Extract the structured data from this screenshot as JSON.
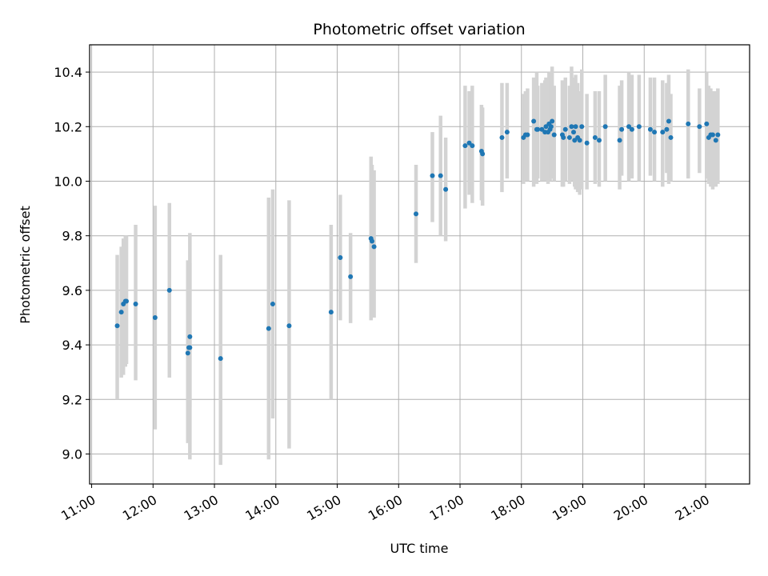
{
  "chart_data": {
    "type": "scatter",
    "title": "Photometric offset variation",
    "xlabel": "UTC time",
    "ylabel": "Photometric offset",
    "x_unit": "UTC time (hh:mm)",
    "xlim": [
      "10:58",
      "21:43"
    ],
    "ylim": [
      8.89,
      10.5
    ],
    "x_ticks": [
      "11:00",
      "12:00",
      "13:00",
      "14:00",
      "15:00",
      "16:00",
      "17:00",
      "18:00",
      "19:00",
      "20:00",
      "21:00"
    ],
    "y_ticks": [
      9.0,
      9.2,
      9.4,
      9.6,
      9.8,
      10.0,
      10.2,
      10.4
    ],
    "y_tick_labels": [
      "9.0",
      "9.2",
      "9.4",
      "9.6",
      "9.8",
      "10.0",
      "10.2",
      "10.4"
    ],
    "grid": true,
    "colors": {
      "points": "#1f77b4",
      "error_bars": "#d3d3d3",
      "grid": "#b0b0b0"
    },
    "series": [
      {
        "x": [
          "11:25",
          "11:29",
          "11:31",
          "11:33",
          "11:34",
          "11:43",
          "12:02",
          "12:16",
          "12:34",
          "12:35",
          "12:36",
          "12:36",
          "13:06",
          "13:53",
          "13:57",
          "14:13",
          "14:54",
          "15:03",
          "15:13",
          "15:33",
          "15:34",
          "15:36",
          "16:17",
          "16:33",
          "16:41",
          "16:46",
          "17:05",
          "17:09",
          "17:12",
          "17:21",
          "17:22",
          "17:41",
          "17:46",
          "18:02",
          "18:04",
          "18:06",
          "18:12",
          "18:15",
          "18:16",
          "18:20",
          "18:23",
          "18:24",
          "18:26",
          "18:27",
          "18:28",
          "18:29",
          "18:30",
          "18:32",
          "18:40",
          "18:41",
          "18:43",
          "18:47",
          "18:49",
          "18:51",
          "18:52",
          "18:53",
          "18:55",
          "18:57",
          "18:59",
          "19:04",
          "19:12",
          "19:16",
          "19:22",
          "19:36",
          "19:38",
          "19:45",
          "19:48",
          "19:55",
          "20:06",
          "20:10",
          "20:18",
          "20:22",
          "20:24",
          "20:26",
          "20:43",
          "20:54",
          "21:01",
          "21:03",
          "21:05",
          "21:07",
          "21:10",
          "21:12"
        ],
        "y": [
          9.47,
          9.52,
          9.55,
          9.56,
          9.56,
          9.55,
          9.5,
          9.6,
          9.37,
          9.39,
          9.39,
          9.43,
          9.35,
          9.46,
          9.55,
          9.47,
          9.52,
          9.72,
          9.65,
          9.79,
          9.78,
          9.76,
          9.88,
          10.02,
          10.02,
          9.97,
          10.13,
          10.14,
          10.13,
          10.11,
          10.1,
          10.16,
          10.18,
          10.16,
          10.17,
          10.17,
          10.22,
          10.19,
          10.19,
          10.19,
          10.18,
          10.2,
          10.18,
          10.21,
          10.19,
          10.2,
          10.22,
          10.17,
          10.17,
          10.16,
          10.19,
          10.16,
          10.2,
          10.18,
          10.15,
          10.2,
          10.16,
          10.15,
          10.2,
          10.14,
          10.16,
          10.15,
          10.2,
          10.15,
          10.19,
          10.2,
          10.19,
          10.2,
          10.19,
          10.18,
          10.18,
          10.19,
          10.22,
          10.16,
          10.21,
          10.2,
          10.21,
          10.16,
          10.17,
          10.17,
          10.15,
          10.17
        ],
        "y_low": [
          9.2,
          9.28,
          9.29,
          9.32,
          9.33,
          9.27,
          9.09,
          9.28,
          9.04,
          9.11,
          8.98,
          9.17,
          8.96,
          8.98,
          9.13,
          9.02,
          9.2,
          9.49,
          9.48,
          9.49,
          9.51,
          9.5,
          9.7,
          9.85,
          9.8,
          9.78,
          9.9,
          9.95,
          9.92,
          9.93,
          9.91,
          9.96,
          10.01,
          9.99,
          10.0,
          10.0,
          9.98,
          9.99,
          10.01,
          10.0,
          10.0,
          10.02,
          9.99,
          10.01,
          10.0,
          10.01,
          10.02,
          10.0,
          9.98,
          9.98,
          10.0,
          9.99,
          10.0,
          10.0,
          9.98,
          9.97,
          9.96,
          9.95,
          9.97,
          9.97,
          9.99,
          9.98,
          10.0,
          9.97,
          10.02,
          10.0,
          10.01,
          10.0,
          10.02,
          10.0,
          9.98,
          10.03,
          9.99,
          10.0,
          10.01,
          10.03,
          10.01,
          9.99,
          9.98,
          9.97,
          9.98,
          9.99
        ],
        "y_high": [
          9.73,
          9.76,
          9.79,
          9.8,
          9.8,
          9.84,
          9.91,
          9.92,
          9.71,
          9.67,
          9.81,
          9.7,
          9.73,
          9.94,
          9.97,
          9.93,
          9.84,
          9.95,
          9.81,
          10.09,
          10.06,
          10.04,
          10.06,
          10.18,
          10.24,
          10.16,
          10.35,
          10.33,
          10.35,
          10.28,
          10.27,
          10.36,
          10.36,
          10.32,
          10.33,
          10.34,
          10.38,
          10.4,
          10.35,
          10.36,
          10.37,
          10.38,
          10.36,
          10.4,
          10.37,
          10.4,
          10.42,
          10.35,
          10.37,
          10.36,
          10.38,
          10.35,
          10.42,
          10.38,
          10.35,
          10.39,
          10.36,
          10.33,
          10.41,
          10.32,
          10.33,
          10.33,
          10.39,
          10.35,
          10.37,
          10.4,
          10.39,
          10.39,
          10.38,
          10.38,
          10.37,
          10.36,
          10.39,
          10.32,
          10.41,
          10.34,
          10.4,
          10.35,
          10.34,
          10.33,
          10.33,
          10.34
        ]
      }
    ]
  }
}
